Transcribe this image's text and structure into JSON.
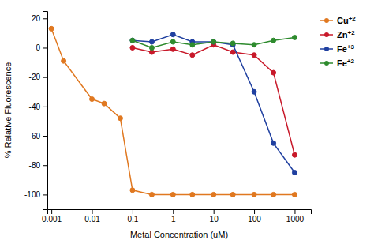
{
  "chart_data": {
    "type": "line",
    "xlabel": "Metal Concentration (uM)",
    "ylabel": "% Relative Fluorescence",
    "log": "x",
    "grid": false,
    "marker": "circle",
    "xlim": [
      0.0007943282347242813,
      2511.886431509582
    ],
    "xticks": [
      0.001,
      0.01,
      0.1,
      1,
      10,
      100,
      1000
    ],
    "ylim": [
      -110,
      25
    ],
    "yticks": [
      20,
      0,
      -20,
      -40,
      -60,
      -80,
      -100
    ],
    "series": [
      {
        "name": "Cu+2",
        "color": "#e07820",
        "x": [
          0.001,
          0.002,
          0.01,
          0.02,
          0.05,
          0.1,
          0.3,
          1,
          3,
          10,
          30,
          100,
          300,
          1000
        ],
        "values": [
          13,
          -9,
          -35,
          -38,
          -48,
          -97,
          -100,
          -100,
          -100,
          -100,
          -100,
          -100,
          -100,
          -100
        ]
      },
      {
        "name": "Zn+2",
        "color": "#c8192a",
        "x": [
          0.1,
          0.3,
          1,
          3,
          10,
          30,
          100,
          300,
          1000
        ],
        "values": [
          0,
          -3,
          -1,
          -5,
          2,
          -3,
          -5,
          -17,
          -73
        ]
      },
      {
        "name": "Fe+3",
        "color": "#2040a0",
        "x": [
          0.1,
          0.3,
          1,
          3,
          10,
          30,
          100,
          300,
          1000
        ],
        "values": [
          5,
          4,
          9,
          4,
          4,
          2,
          -30,
          -65,
          -85
        ]
      },
      {
        "name": "Fe+2",
        "color": "#2e8b2e",
        "x": [
          0.1,
          0.3,
          1,
          3,
          10,
          30,
          100,
          300,
          1000
        ],
        "values": [
          5,
          0,
          4,
          2,
          4,
          3,
          2,
          5,
          7
        ]
      }
    ]
  }
}
